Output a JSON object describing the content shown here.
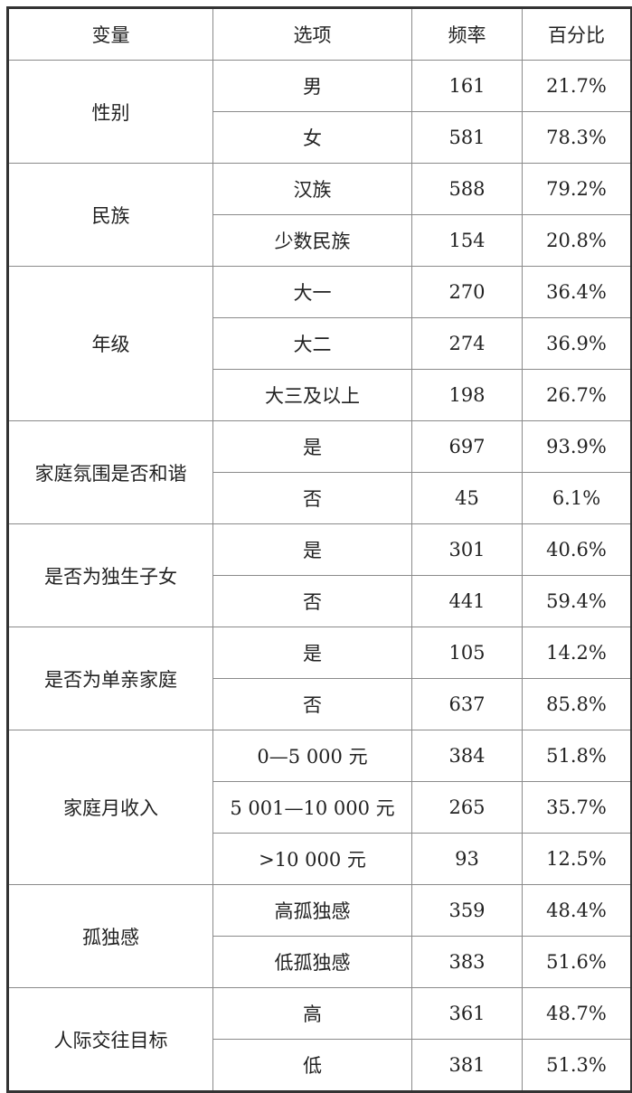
{
  "headers": [
    "变量",
    "选项",
    "频率",
    "百分比"
  ],
  "groups": [
    {
      "variable": "性别",
      "rows": [
        [
          "男",
          "161",
          "21.7%"
        ],
        [
          "女",
          "581",
          "78.3%"
        ]
      ]
    },
    {
      "variable": "民族",
      "rows": [
        [
          "汉族",
          "588",
          "79.2%"
        ],
        [
          "少数民族",
          "154",
          "20.8%"
        ]
      ]
    },
    {
      "variable": "年级",
      "rows": [
        [
          "大一",
          "270",
          "36.4%"
        ],
        [
          "大二",
          "274",
          "36.9%"
        ],
        [
          "大三及以上",
          "198",
          "26.7%"
        ]
      ]
    },
    {
      "variable": "家庭氛围是否和谐",
      "rows": [
        [
          "是",
          "697",
          "93.9%"
        ],
        [
          "否",
          "45",
          "6.1%"
        ]
      ]
    },
    {
      "variable": "是否为独生子女",
      "rows": [
        [
          "是",
          "301",
          "40.6%"
        ],
        [
          "否",
          "441",
          "59.4%"
        ]
      ]
    },
    {
      "variable": "是否为单亲家庭",
      "rows": [
        [
          "是",
          "105",
          "14.2%"
        ],
        [
          "否",
          "637",
          "85.8%"
        ]
      ]
    },
    {
      "variable": "家庭月收入",
      "rows": [
        [
          "0—5 000 元",
          "384",
          "51.8%"
        ],
        [
          "5 001—10 000 元",
          "265",
          "35.7%"
        ],
        [
          ">10 000 元",
          "93",
          "12.5%"
        ]
      ]
    },
    {
      "variable": "孤独感",
      "rows": [
        [
          "高孤独感",
          "359",
          "48.4%"
        ],
        [
          "低孤独感",
          "383",
          "51.6%"
        ]
      ]
    },
    {
      "variable": "人际交往目标",
      "rows": [
        [
          "高",
          "361",
          "48.7%"
        ],
        [
          "低",
          "381",
          "51.3%"
        ]
      ]
    }
  ]
}
